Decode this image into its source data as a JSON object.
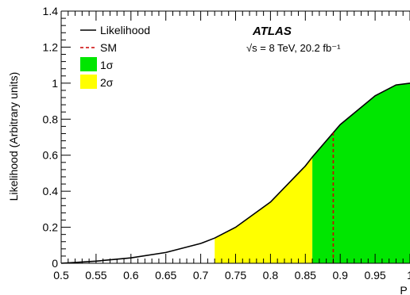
{
  "chart_data": {
    "type": "area",
    "title": "",
    "xlabel": "P",
    "ylabel": "Likelihood (Arbitrary units)",
    "xlim": [
      0.5,
      1.0
    ],
    "ylim": [
      0,
      1.4
    ],
    "x_ticks": [
      "0.5",
      "0.55",
      "0.6",
      "0.65",
      "0.7",
      "0.75",
      "0.8",
      "0.85",
      "0.9",
      "0.95",
      "1"
    ],
    "y_ticks": [
      "0",
      "0.2",
      "0.4",
      "0.6",
      "0.8",
      "1",
      "1.2",
      "1.4"
    ],
    "grid": false,
    "legend_position": "top-left",
    "legend": [
      {
        "label": "Likelihood",
        "style": "solid-line",
        "color": "#000000"
      },
      {
        "label": "SM",
        "style": "dashed-line",
        "color": "#cc0000"
      },
      {
        "label": "1σ",
        "style": "fill",
        "color": "#00e600"
      },
      {
        "label": "2σ",
        "style": "fill",
        "color": "#ffff00"
      }
    ],
    "annotations": {
      "experiment": "ATLAS",
      "energy": "√s = 8 TeV, 20.2 fb⁻¹"
    },
    "series": [
      {
        "name": "Likelihood",
        "x": [
          0.5,
          0.55,
          0.6,
          0.65,
          0.7,
          0.72,
          0.75,
          0.8,
          0.85,
          0.86,
          0.9,
          0.95,
          0.98,
          1.0
        ],
        "values": [
          0.0,
          0.012,
          0.03,
          0.06,
          0.11,
          0.14,
          0.2,
          0.34,
          0.54,
          0.59,
          0.77,
          0.93,
          0.99,
          1.0
        ]
      }
    ],
    "bands": [
      {
        "name": "2σ",
        "x_range": [
          0.72,
          0.86
        ],
        "color": "#ffff00"
      },
      {
        "name": "1σ",
        "x_range": [
          0.86,
          1.0
        ],
        "color": "#00e600"
      }
    ],
    "sm_value": 0.89
  }
}
